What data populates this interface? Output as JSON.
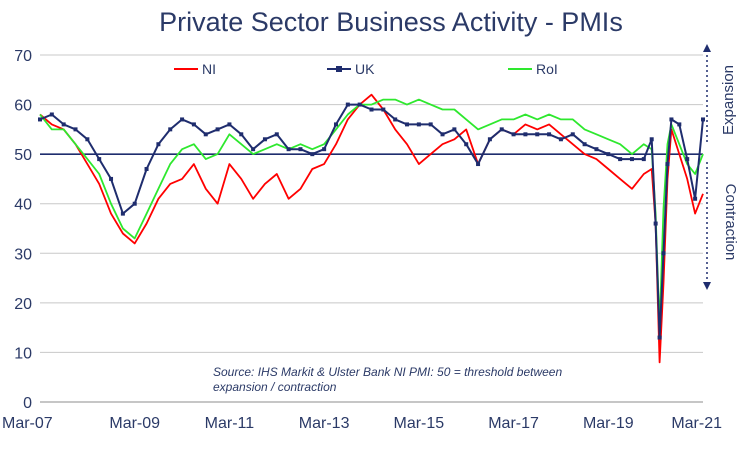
{
  "chart_data": {
    "type": "line",
    "title": "Private Sector Business Activity - PMIs",
    "xlabel": "",
    "ylabel": "",
    "ylim": [
      0,
      70
    ],
    "yticks": [
      0,
      10,
      20,
      30,
      40,
      50,
      60,
      70
    ],
    "x_tick_labels": [
      "Mar-07",
      "Mar-09",
      "Mar-11",
      "Mar-13",
      "Mar-15",
      "Mar-17",
      "Mar-19",
      "Mar-21"
    ],
    "threshold": 50,
    "grid": "horizontal",
    "legend_position": "top",
    "side_labels": {
      "upper": "Expansion",
      "lower": "Contraction"
    },
    "annotation": {
      "line1": "Source: IHS Markit & Ulster Bank NI PMI: 50 = threshold between",
      "line2": "expansion / contraction"
    },
    "series": [
      {
        "name": "NI",
        "color": "#ff0000",
        "marker": "none",
        "points": [
          [
            "2007-03",
            58
          ],
          [
            "2007-06",
            56
          ],
          [
            "2007-09",
            55
          ],
          [
            "2007-12",
            52
          ],
          [
            "2008-03",
            48
          ],
          [
            "2008-06",
            44
          ],
          [
            "2008-09",
            38
          ],
          [
            "2008-12",
            34
          ],
          [
            "2009-03",
            32
          ],
          [
            "2009-06",
            36
          ],
          [
            "2009-09",
            41
          ],
          [
            "2009-12",
            44
          ],
          [
            "2010-03",
            45
          ],
          [
            "2010-06",
            48
          ],
          [
            "2010-09",
            43
          ],
          [
            "2010-12",
            40
          ],
          [
            "2011-03",
            48
          ],
          [
            "2011-06",
            45
          ],
          [
            "2011-09",
            41
          ],
          [
            "2011-12",
            44
          ],
          [
            "2012-03",
            46
          ],
          [
            "2012-06",
            41
          ],
          [
            "2012-09",
            43
          ],
          [
            "2012-12",
            47
          ],
          [
            "2013-03",
            48
          ],
          [
            "2013-06",
            52
          ],
          [
            "2013-09",
            57
          ],
          [
            "2013-12",
            60
          ],
          [
            "2014-03",
            62
          ],
          [
            "2014-06",
            59
          ],
          [
            "2014-09",
            55
          ],
          [
            "2014-12",
            52
          ],
          [
            "2015-03",
            48
          ],
          [
            "2015-06",
            50
          ],
          [
            "2015-09",
            52
          ],
          [
            "2015-12",
            53
          ],
          [
            "2016-03",
            55
          ],
          [
            "2016-06",
            48
          ],
          [
            "2016-09",
            53
          ],
          [
            "2016-12",
            55
          ],
          [
            "2017-03",
            54
          ],
          [
            "2017-06",
            56
          ],
          [
            "2017-09",
            55
          ],
          [
            "2017-12",
            56
          ],
          [
            "2018-03",
            54
          ],
          [
            "2018-06",
            52
          ],
          [
            "2018-09",
            50
          ],
          [
            "2018-12",
            49
          ],
          [
            "2019-03",
            47
          ],
          [
            "2019-06",
            45
          ],
          [
            "2019-09",
            43
          ],
          [
            "2019-12",
            46
          ],
          [
            "2020-02",
            47
          ],
          [
            "2020-03",
            36
          ],
          [
            "2020-04",
            8
          ],
          [
            "2020-05",
            24
          ],
          [
            "2020-06",
            45
          ],
          [
            "2020-07",
            55
          ],
          [
            "2020-09",
            50
          ],
          [
            "2020-11",
            45
          ],
          [
            "2021-01",
            38
          ],
          [
            "2021-03",
            42
          ]
        ]
      },
      {
        "name": "UK",
        "color": "#1f2d6e",
        "marker": "square",
        "points": [
          [
            "2007-03",
            57
          ],
          [
            "2007-06",
            58
          ],
          [
            "2007-09",
            56
          ],
          [
            "2007-12",
            55
          ],
          [
            "2008-03",
            53
          ],
          [
            "2008-06",
            49
          ],
          [
            "2008-09",
            45
          ],
          [
            "2008-12",
            38
          ],
          [
            "2009-03",
            40
          ],
          [
            "2009-06",
            47
          ],
          [
            "2009-09",
            52
          ],
          [
            "2009-12",
            55
          ],
          [
            "2010-03",
            57
          ],
          [
            "2010-06",
            56
          ],
          [
            "2010-09",
            54
          ],
          [
            "2010-12",
            55
          ],
          [
            "2011-03",
            56
          ],
          [
            "2011-06",
            54
          ],
          [
            "2011-09",
            51
          ],
          [
            "2011-12",
            53
          ],
          [
            "2012-03",
            54
          ],
          [
            "2012-06",
            51
          ],
          [
            "2012-09",
            51
          ],
          [
            "2012-12",
            50
          ],
          [
            "2013-03",
            51
          ],
          [
            "2013-06",
            56
          ],
          [
            "2013-09",
            60
          ],
          [
            "2013-12",
            60
          ],
          [
            "2014-03",
            59
          ],
          [
            "2014-06",
            59
          ],
          [
            "2014-09",
            57
          ],
          [
            "2014-12",
            56
          ],
          [
            "2015-03",
            56
          ],
          [
            "2015-06",
            56
          ],
          [
            "2015-09",
            54
          ],
          [
            "2015-12",
            55
          ],
          [
            "2016-03",
            52
          ],
          [
            "2016-06",
            48
          ],
          [
            "2016-09",
            53
          ],
          [
            "2016-12",
            55
          ],
          [
            "2017-03",
            54
          ],
          [
            "2017-06",
            54
          ],
          [
            "2017-09",
            54
          ],
          [
            "2017-12",
            54
          ],
          [
            "2018-03",
            53
          ],
          [
            "2018-06",
            54
          ],
          [
            "2018-09",
            52
          ],
          [
            "2018-12",
            51
          ],
          [
            "2019-03",
            50
          ],
          [
            "2019-06",
            49
          ],
          [
            "2019-09",
            49
          ],
          [
            "2019-12",
            49
          ],
          [
            "2020-02",
            53
          ],
          [
            "2020-03",
            36
          ],
          [
            "2020-04",
            13
          ],
          [
            "2020-05",
            30
          ],
          [
            "2020-06",
            48
          ],
          [
            "2020-07",
            57
          ],
          [
            "2020-09",
            56
          ],
          [
            "2020-11",
            49
          ],
          [
            "2021-01",
            41
          ],
          [
            "2021-03",
            57
          ]
        ]
      },
      {
        "name": "RoI",
        "color": "#2ee82e",
        "marker": "none",
        "points": [
          [
            "2007-03",
            58
          ],
          [
            "2007-06",
            55
          ],
          [
            "2007-09",
            55
          ],
          [
            "2007-12",
            52
          ],
          [
            "2008-03",
            49
          ],
          [
            "2008-06",
            46
          ],
          [
            "2008-09",
            40
          ],
          [
            "2008-12",
            35
          ],
          [
            "2009-03",
            33
          ],
          [
            "2009-06",
            38
          ],
          [
            "2009-09",
            43
          ],
          [
            "2009-12",
            48
          ],
          [
            "2010-03",
            51
          ],
          [
            "2010-06",
            52
          ],
          [
            "2010-09",
            49
          ],
          [
            "2010-12",
            50
          ],
          [
            "2011-03",
            54
          ],
          [
            "2011-06",
            52
          ],
          [
            "2011-09",
            50
          ],
          [
            "2011-12",
            51
          ],
          [
            "2012-03",
            52
          ],
          [
            "2012-06",
            51
          ],
          [
            "2012-09",
            52
          ],
          [
            "2012-12",
            51
          ],
          [
            "2013-03",
            52
          ],
          [
            "2013-06",
            55
          ],
          [
            "2013-09",
            58
          ],
          [
            "2013-12",
            60
          ],
          [
            "2014-03",
            60
          ],
          [
            "2014-06",
            61
          ],
          [
            "2014-09",
            61
          ],
          [
            "2014-12",
            60
          ],
          [
            "2015-03",
            61
          ],
          [
            "2015-06",
            60
          ],
          [
            "2015-09",
            59
          ],
          [
            "2015-12",
            59
          ],
          [
            "2016-03",
            57
          ],
          [
            "2016-06",
            55
          ],
          [
            "2016-09",
            56
          ],
          [
            "2016-12",
            57
          ],
          [
            "2017-03",
            57
          ],
          [
            "2017-06",
            58
          ],
          [
            "2017-09",
            57
          ],
          [
            "2017-12",
            58
          ],
          [
            "2018-03",
            57
          ],
          [
            "2018-06",
            57
          ],
          [
            "2018-09",
            55
          ],
          [
            "2018-12",
            54
          ],
          [
            "2019-03",
            53
          ],
          [
            "2019-06",
            52
          ],
          [
            "2019-09",
            50
          ],
          [
            "2019-12",
            52
          ],
          [
            "2020-02",
            51
          ],
          [
            "2020-03",
            38
          ],
          [
            "2020-04",
            15
          ],
          [
            "2020-05",
            39
          ],
          [
            "2020-06",
            52
          ],
          [
            "2020-07",
            56
          ],
          [
            "2020-09",
            52
          ],
          [
            "2020-11",
            48
          ],
          [
            "2021-01",
            46
          ],
          [
            "2021-03",
            50
          ]
        ]
      }
    ]
  }
}
